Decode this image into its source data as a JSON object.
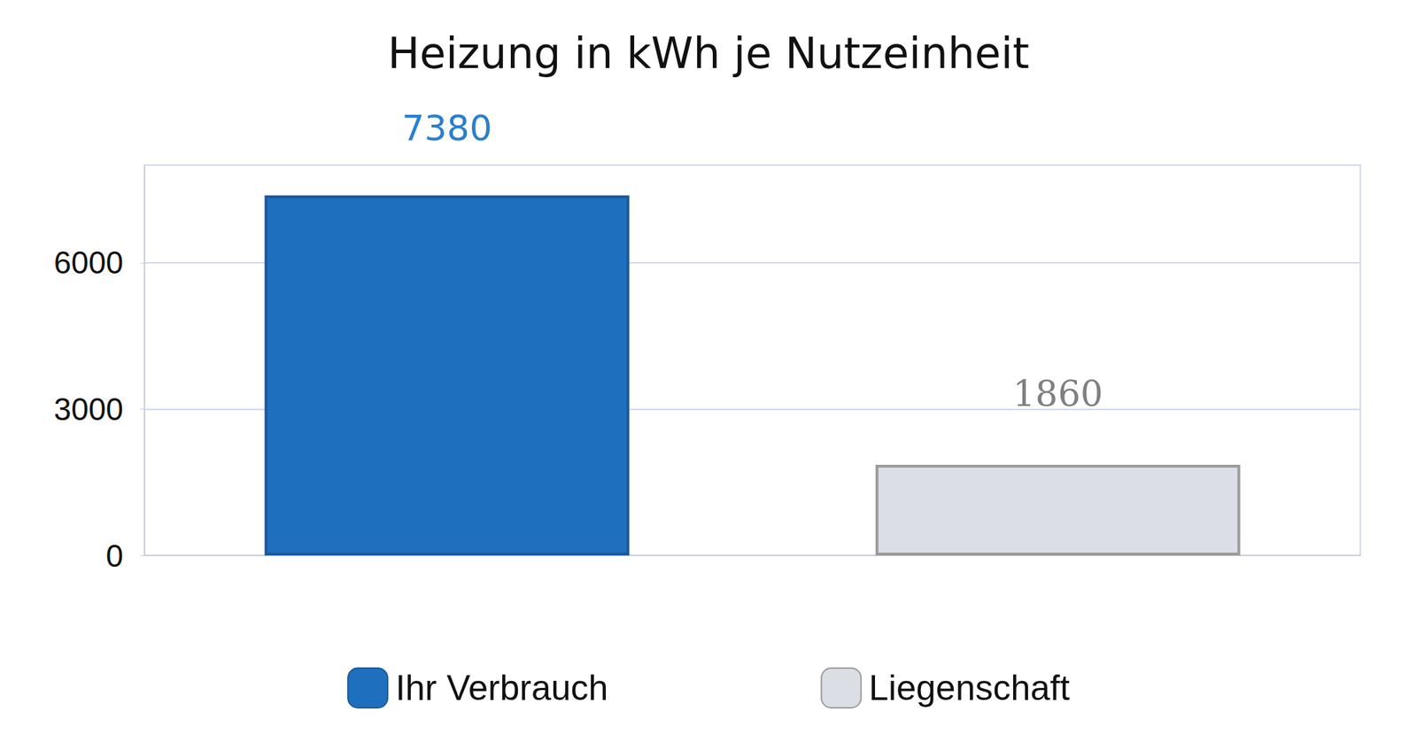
{
  "chart_data": {
    "type": "bar",
    "title": "Heizung in kWh je Nutzeinheit",
    "categories": [
      null
    ],
    "series": [
      {
        "name": "Ihr Verbrauch",
        "color": "#1f6fbf",
        "values": [
          7380
        ]
      },
      {
        "name": "Liegenschaft",
        "color": "#dcdee6",
        "values": [
          1860
        ]
      }
    ],
    "ylim": [
      0,
      8000
    ],
    "yticks": [
      0,
      3000,
      6000
    ],
    "grid": true,
    "legend": "bottom",
    "data_labels": true,
    "tick_labels": "y"
  }
}
